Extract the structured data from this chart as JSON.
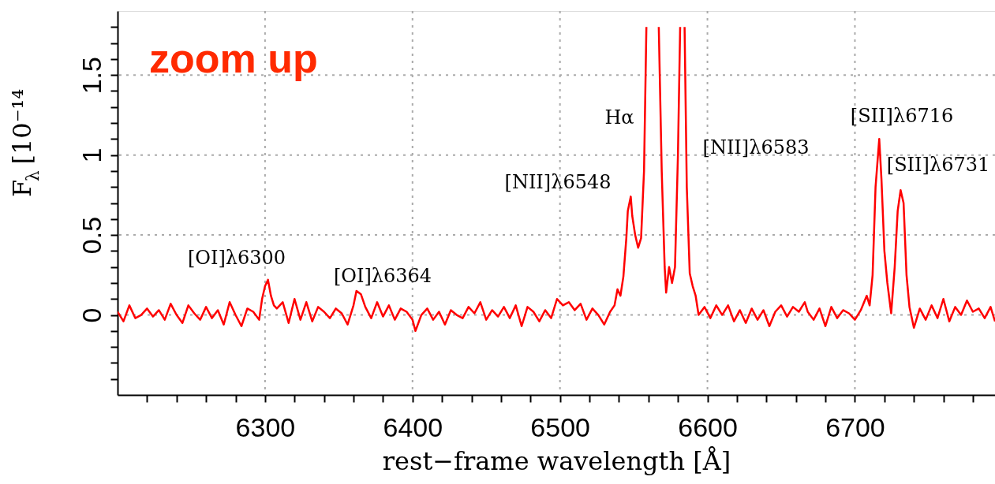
{
  "chart_data": {
    "type": "line",
    "xlabel": "rest−frame wavelength [Å]",
    "ylabel": "F$_{λ}$ [10⁻¹⁴",
    "xlim": [
      6200,
      6795
    ],
    "ylim": [
      -0.5,
      1.9
    ],
    "xticks": [
      {
        "value": 6220,
        "label": null
      },
      {
        "value": 6240,
        "label": null
      },
      {
        "value": 6260,
        "label": null
      },
      {
        "value": 6280,
        "label": null
      },
      6300,
      {
        "value": 6320,
        "label": null
      },
      {
        "value": 6340,
        "label": null
      },
      {
        "value": 6360,
        "label": null
      },
      {
        "value": 6380,
        "label": null
      },
      6400,
      {
        "value": 6420,
        "label": null
      },
      {
        "value": 6440,
        "label": null
      },
      {
        "value": 6460,
        "label": null
      },
      {
        "value": 6480,
        "label": null
      },
      6500,
      {
        "value": 6520,
        "label": null
      },
      {
        "value": 6540,
        "label": null
      },
      {
        "value": 6560,
        "label": null
      },
      {
        "value": 6580,
        "label": null
      },
      6600,
      {
        "value": 6620,
        "label": null
      },
      {
        "value": 6640,
        "label": null
      },
      {
        "value": 6660,
        "label": null
      },
      {
        "value": 6680,
        "label": null
      },
      6700,
      {
        "value": 6720,
        "label": null
      },
      {
        "value": 6740,
        "label": null
      },
      {
        "value": 6760,
        "label": null
      },
      {
        "value": 6780,
        "label": null
      }
    ],
    "yticks": [
      {
        "value": -0.4,
        "label": null
      },
      {
        "value": -0.3,
        "label": null
      },
      {
        "value": -0.2,
        "label": null
      },
      {
        "value": -0.1,
        "label": null
      },
      0,
      {
        "value": 0.1,
        "label": null
      },
      {
        "value": 0.2,
        "label": null
      },
      {
        "value": 0.3,
        "label": null
      },
      {
        "value": 0.4,
        "label": null
      },
      0.5,
      {
        "value": 0.6,
        "label": null
      },
      {
        "value": 0.7,
        "label": null
      },
      {
        "value": 0.8,
        "label": null
      },
      {
        "value": 0.9,
        "label": null
      },
      1,
      {
        "value": 1.1,
        "label": null
      },
      {
        "value": 1.2,
        "label": null
      },
      {
        "value": 1.3,
        "label": null
      },
      {
        "value": 1.4,
        "label": null
      },
      1.5,
      {
        "value": 1.6,
        "label": null
      },
      {
        "value": 1.7,
        "label": null
      },
      {
        "value": 1.8,
        "label": null
      }
    ],
    "grid": true,
    "marker": "none",
    "line_style": "solid",
    "annotations": [
      "zoom up",
      "[OI]λ6300",
      "[OI]λ6364",
      "[NII]λ6548",
      "Hα",
      "[NII]λ6583",
      "[SII]λ6716",
      "[SII]λ6731"
    ],
    "x": [
      6200,
      6204,
      6208,
      6212,
      6216,
      6220,
      6224,
      6228,
      6232,
      6236,
      6240,
      6244,
      6248,
      6252,
      6256,
      6260,
      6264,
      6268,
      6272,
      6276,
      6280,
      6284,
      6288,
      6292,
      6296,
      6298,
      6300,
      6302,
      6304,
      6306,
      6308,
      6312,
      6316,
      6320,
      6324,
      6328,
      6332,
      6336,
      6340,
      6344,
      6348,
      6352,
      6356,
      6360,
      6362,
      6365,
      6368,
      6372,
      6376,
      6380,
      6384,
      6388,
      6392,
      6396,
      6400,
      6402,
      6406,
      6410,
      6414,
      6418,
      6422,
      6426,
      6430,
      6434,
      6438,
      6442,
      6446,
      6450,
      6454,
      6458,
      6462,
      6466,
      6470,
      6474,
      6478,
      6482,
      6486,
      6490,
      6494,
      6498,
      6502,
      6506,
      6510,
      6514,
      6518,
      6522,
      6526,
      6530,
      6534,
      6537,
      6539,
      6541,
      6543,
      6545,
      6546,
      6548,
      6549,
      6551,
      6553,
      6555,
      6557,
      6558.6,
      6563,
      6567,
      6569,
      6571,
      6572,
      6574,
      6576,
      6578,
      6580,
      6581.5,
      6583,
      6584.5,
      6586,
      6588,
      6590,
      6592,
      6594,
      6598,
      6602,
      6606,
      6610,
      6614,
      6618,
      6622,
      6626,
      6630,
      6634,
      6638,
      6642,
      6646,
      6650,
      6654,
      6658,
      6662,
      6666,
      6668,
      6672,
      6676,
      6680,
      6684,
      6688,
      6692,
      6696,
      6700,
      6704,
      6708,
      6710,
      6712,
      6714,
      6716.5,
      6718,
      6720,
      6722,
      6724.6,
      6727,
      6729,
      6731,
      6733,
      6735,
      6737,
      6740,
      6744,
      6748,
      6752,
      6756,
      6760,
      6764,
      6768,
      6772,
      6776,
      6780,
      6784,
      6788,
      6792,
      6795
    ],
    "series": [
      {
        "color": "#ff0000",
        "values": [
          0.02,
          -0.04,
          0.06,
          -0.02,
          0.0,
          0.04,
          -0.01,
          0.03,
          -0.03,
          0.07,
          0.0,
          -0.05,
          0.06,
          0.01,
          -0.03,
          0.05,
          -0.02,
          0.03,
          -0.06,
          0.08,
          0.0,
          -0.07,
          0.04,
          0.02,
          -0.03,
          0.1,
          0.18,
          0.22,
          0.12,
          0.06,
          0.04,
          0.08,
          -0.05,
          0.1,
          -0.03,
          0.08,
          -0.04,
          0.05,
          0.02,
          -0.02,
          0.04,
          0.01,
          -0.06,
          0.06,
          0.15,
          0.13,
          0.05,
          -0.02,
          0.08,
          -0.01,
          0.06,
          -0.03,
          0.04,
          0.02,
          -0.03,
          -0.1,
          0.0,
          0.04,
          -0.03,
          0.02,
          -0.06,
          0.03,
          0.0,
          -0.02,
          0.05,
          0.01,
          0.08,
          -0.03,
          0.03,
          -0.01,
          0.05,
          -0.02,
          0.06,
          -0.07,
          0.05,
          0.02,
          -0.04,
          0.03,
          -0.02,
          0.1,
          0.06,
          0.08,
          0.03,
          0.07,
          -0.03,
          0.04,
          0.0,
          -0.06,
          0.02,
          0.06,
          0.16,
          0.12,
          0.24,
          0.48,
          0.65,
          0.74,
          0.62,
          0.5,
          0.42,
          0.48,
          0.9,
          1.8,
          null,
          1.8,
          0.9,
          0.3,
          0.14,
          0.3,
          0.2,
          0.3,
          1.0,
          1.8,
          null,
          1.8,
          0.8,
          0.26,
          0.18,
          0.12,
          0.0,
          0.05,
          -0.02,
          0.06,
          0.0,
          0.06,
          -0.04,
          0.03,
          -0.05,
          0.04,
          -0.03,
          0.03,
          -0.07,
          0.02,
          0.06,
          -0.01,
          0.05,
          0.02,
          0.08,
          0.02,
          -0.03,
          0.04,
          -0.07,
          0.05,
          -0.02,
          0.03,
          0.01,
          -0.03,
          0.03,
          0.12,
          0.06,
          0.25,
          0.8,
          1.1,
          0.85,
          0.4,
          0.2,
          0.01,
          0.3,
          0.65,
          0.78,
          0.7,
          0.25,
          0.05,
          -0.08,
          0.04,
          -0.03,
          0.06,
          -0.02,
          0.1,
          -0.04,
          0.05,
          0.0,
          0.09,
          0.02,
          0.04,
          -0.02,
          0.05,
          -0.04
        ]
      }
    ]
  }
}
